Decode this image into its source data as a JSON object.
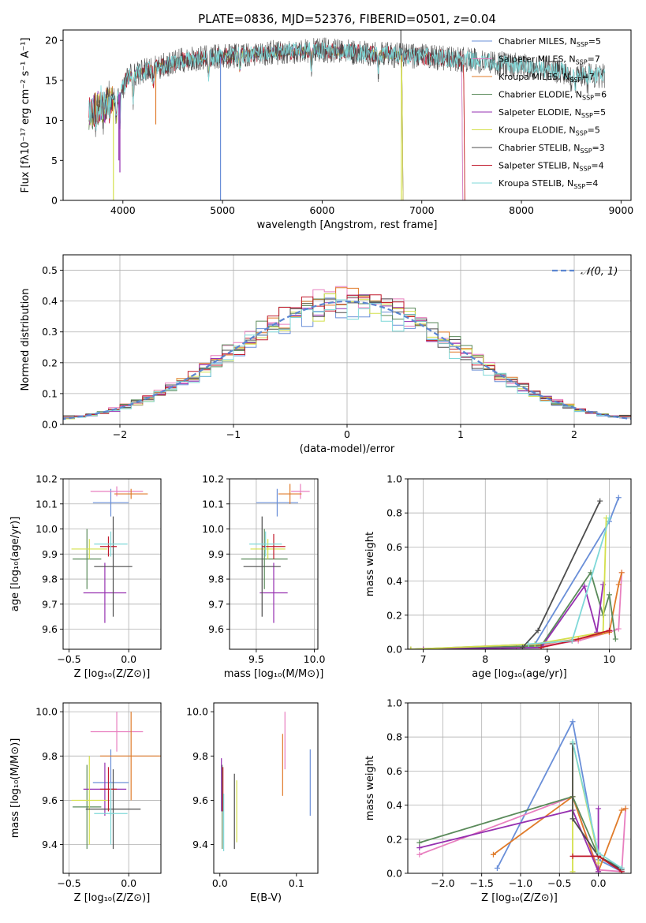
{
  "title": "PLATE=0836, MJD=52376, FIBERID=0501, z=0.04",
  "colors": {
    "Chabrier MILES": "#6a8fd8",
    "Salpeter MILES": "#e87fbf",
    "Kroupa MILES": "#e07b2a",
    "Chabrier ELODIE": "#5a8a5a",
    "Salpeter ELODIE": "#9630b0",
    "Kroupa ELODIE": "#d4e04c",
    "Chabrier STELIB": "#4d4d4d",
    "Salpeter STELIB": "#c0192b",
    "Kroupa STELIB": "#7fd8d8"
  },
  "legend_entries": [
    {
      "name": "Chabrier MILES",
      "n": "5"
    },
    {
      "name": "Salpeter MILES",
      "n": "7"
    },
    {
      "name": "Kroupa MILES",
      "n": "7"
    },
    {
      "name": "Chabrier ELODIE",
      "n": "6"
    },
    {
      "name": "Salpeter ELODIE",
      "n": "5"
    },
    {
      "name": "Kroupa ELODIE",
      "n": "5"
    },
    {
      "name": "Chabrier STELIB",
      "n": "3"
    },
    {
      "name": "Salpeter STELIB",
      "n": "4"
    },
    {
      "name": "Kroupa STELIB",
      "n": "4"
    }
  ],
  "legend_n_prefix": "N",
  "legend_n_sub": "SSP",
  "legend_n_eq": "=",
  "chart_data": [
    {
      "id": "spectrum",
      "type": "line",
      "xlabel": "wavelength [Angstrom, rest frame]",
      "ylabel": "Flux [fλ10⁻¹⁷ erg cm⁻² s⁻¹ A⁻¹]",
      "xlim": [
        3400,
        9100
      ],
      "ylim": [
        0,
        21.3
      ],
      "xticks": [
        4000,
        5000,
        6000,
        7000,
        8000,
        9000
      ],
      "yticks": [
        0,
        5,
        10,
        15,
        20
      ],
      "data_x_range": [
        3660,
        8840
      ],
      "continuum_knots": [
        [
          3660,
          11
        ],
        [
          3800,
          11.5
        ],
        [
          3950,
          13
        ],
        [
          4050,
          15.5
        ],
        [
          4300,
          16.5
        ],
        [
          4600,
          17.5
        ],
        [
          5000,
          18
        ],
        [
          5500,
          18.5
        ],
        [
          6000,
          18.8
        ],
        [
          6500,
          18.3
        ],
        [
          7000,
          18
        ],
        [
          7500,
          17.5
        ],
        [
          8000,
          16.8
        ],
        [
          8500,
          16
        ],
        [
          8840,
          15.5
        ]
      ],
      "absorption_features": [
        [
          3934,
          3
        ],
        [
          3969,
          4
        ],
        [
          4102,
          3
        ],
        [
          4305,
          2
        ],
        [
          4861,
          2
        ],
        [
          5175,
          2
        ],
        [
          5890,
          2
        ],
        [
          6563,
          2
        ],
        [
          8500,
          1.5
        ],
        [
          8542,
          1.5
        ],
        [
          8662,
          1.5
        ]
      ],
      "spikes": [
        {
          "series": "Kroupa ELODIE",
          "x": 3905,
          "y": 0
        },
        {
          "series": "Chabrier MILES",
          "x": 4980,
          "y": 0
        },
        {
          "series": "Kroupa ELODIE",
          "x": 6795,
          "y": 0
        },
        {
          "series": "Chabrier STELIB",
          "x": 6790,
          "y": 21.3
        },
        {
          "series": "Kroupa MILES",
          "x": 4330,
          "y": 9.5
        },
        {
          "series": "Salpeter ELODIE",
          "x": 3960,
          "y": 5
        },
        {
          "series": "Salpeter ELODIE",
          "x": 3970,
          "y": 3.5
        }
      ],
      "series_end_x": {
        "Chabrier MILES": 7400,
        "Salpeter MILES": 7400,
        "Kroupa MILES": 7420,
        "Chabrier ELODIE": 6800,
        "Salpeter ELODIE": 6800,
        "Kroupa ELODIE": 6800,
        "Chabrier STELIB": 8840,
        "Salpeter STELIB": 7420,
        "Kroupa STELIB": 8840
      },
      "legend": "top-right"
    },
    {
      "id": "residuals",
      "type": "histogram",
      "xlabel": "(data-model)/error",
      "ylabel": "Normed distribution",
      "xlim": [
        -2.5,
        2.5
      ],
      "ylim": [
        0,
        0.55
      ],
      "xticks": [
        -2,
        -1,
        0,
        1,
        2
      ],
      "yticks": [
        0.0,
        0.1,
        0.2,
        0.3,
        0.4,
        0.5
      ],
      "grid": true,
      "bin_edges_start": -2.5,
      "bin_width": 0.1,
      "reference_curve": {
        "label": "𝒩(0, 1)",
        "mu": 0,
        "sigma": 1,
        "color": "#5b86d1",
        "dashed": true
      },
      "legend": "top-right"
    },
    {
      "id": "age_vs_Z",
      "type": "errorbar",
      "xlabel": "Z [log₁₀(Z/Z⊙)]",
      "ylabel": "age  [log₁₀(age/yr)]",
      "xlim": [
        -0.55,
        0.27
      ],
      "ylim": [
        9.52,
        10.2
      ],
      "xticks": [
        -0.5,
        0.0
      ],
      "yticks": [
        9.6,
        9.7,
        9.8,
        9.9,
        10.0,
        10.1,
        10.2
      ],
      "grid": true,
      "points": [
        {
          "series": "Chabrier MILES",
          "x": -0.15,
          "xerr": 0.15,
          "y": 10.105,
          "yerr": 0.055
        },
        {
          "series": "Salpeter MILES",
          "x": -0.1,
          "xerr": 0.22,
          "y": 10.15,
          "yerr": 0.02
        },
        {
          "series": "Kroupa MILES",
          "x": 0.02,
          "xerr": 0.14,
          "y": 10.14,
          "yerr": 0.02
        },
        {
          "series": "Chabrier ELODIE",
          "x": -0.35,
          "xerr": 0.12,
          "y": 9.88,
          "yerr": 0.12
        },
        {
          "series": "Salpeter ELODIE",
          "x": -0.2,
          "xerr": 0.18,
          "y": 9.745,
          "yerr": 0.12
        },
        {
          "series": "Kroupa ELODIE",
          "x": -0.33,
          "xerr": 0.15,
          "y": 9.92,
          "yerr": 0.04
        },
        {
          "series": "Chabrier STELIB",
          "x": -0.13,
          "xerr": 0.16,
          "y": 9.85,
          "yerr": 0.2
        },
        {
          "series": "Salpeter STELIB",
          "x": -0.17,
          "xerr": 0.07,
          "y": 9.93,
          "yerr": 0.04
        },
        {
          "series": "Kroupa STELIB",
          "x": -0.15,
          "xerr": 0.14,
          "y": 9.94,
          "yerr": 0.05
        }
      ]
    },
    {
      "id": "age_vs_mass",
      "type": "errorbar",
      "xlabel": "mass [log₁₀(M/M⊙)]",
      "ylabel": "",
      "xlim": [
        9.27,
        10.03
      ],
      "ylim": [
        9.52,
        10.2
      ],
      "xticks": [
        9.5,
        10.0
      ],
      "yticks": [
        9.6,
        9.7,
        9.8,
        9.9,
        10.0,
        10.1,
        10.2
      ],
      "grid": true,
      "points": [
        {
          "series": "Chabrier MILES",
          "x": 9.68,
          "xerr": 0.18,
          "y": 10.105,
          "yerr": 0.055
        },
        {
          "series": "Salpeter MILES",
          "x": 9.88,
          "xerr": 0.08,
          "y": 10.15,
          "yerr": 0.03
        },
        {
          "series": "Kroupa MILES",
          "x": 9.79,
          "xerr": 0.1,
          "y": 10.14,
          "yerr": 0.04
        },
        {
          "series": "Chabrier ELODIE",
          "x": 9.57,
          "xerr": 0.2,
          "y": 9.88,
          "yerr": 0.12
        },
        {
          "series": "Salpeter ELODIE",
          "x": 9.65,
          "xerr": 0.12,
          "y": 9.745,
          "yerr": 0.12
        },
        {
          "series": "Kroupa ELODIE",
          "x": 9.6,
          "xerr": 0.15,
          "y": 9.92,
          "yerr": 0.04
        },
        {
          "series": "Chabrier STELIB",
          "x": 9.55,
          "xerr": 0.16,
          "y": 9.85,
          "yerr": 0.2
        },
        {
          "series": "Salpeter STELIB",
          "x": 9.65,
          "xerr": 0.1,
          "y": 9.93,
          "yerr": 0.05
        },
        {
          "series": "Kroupa STELIB",
          "x": 9.58,
          "xerr": 0.14,
          "y": 9.94,
          "yerr": 0.05
        }
      ]
    },
    {
      "id": "weight_vs_age",
      "type": "line",
      "xlabel": "age  [log₁₀(age/yr)]",
      "ylabel": "mass weight",
      "xlim": [
        6.75,
        10.35
      ],
      "ylim": [
        0,
        1.0
      ],
      "xticks": [
        7,
        8,
        9,
        10
      ],
      "yticks": [
        0.0,
        0.2,
        0.4,
        0.6,
        0.8,
        1.0
      ],
      "grid": true,
      "series": [
        {
          "name": "Chabrier MILES",
          "x": [
            6.8,
            8.8,
            10.0,
            10.15
          ],
          "y": [
            0.0,
            0.03,
            0.75,
            0.89
          ]
        },
        {
          "name": "Salpeter MILES",
          "x": [
            7.0,
            8.0,
            8.9,
            9.5,
            10.0,
            10.15,
            10.2
          ],
          "y": [
            0.0,
            0.01,
            0.02,
            0.05,
            0.1,
            0.12,
            0.45
          ]
        },
        {
          "name": "Kroupa MILES",
          "x": [
            6.8,
            8.5,
            9.5,
            10.0,
            10.15,
            10.2
          ],
          "y": [
            0.0,
            0.01,
            0.06,
            0.1,
            0.38,
            0.45
          ]
        },
        {
          "name": "Chabrier ELODIE",
          "x": [
            6.8,
            8.9,
            9.7,
            9.9,
            10.0,
            10.1
          ],
          "y": [
            0.0,
            0.02,
            0.45,
            0.2,
            0.32,
            0.06
          ]
        },
        {
          "name": "Salpeter ELODIE",
          "x": [
            7.0,
            8.9,
            9.6,
            9.8,
            9.9
          ],
          "y": [
            0.0,
            0.01,
            0.37,
            0.1,
            0.38
          ]
        },
        {
          "name": "Kroupa ELODIE",
          "x": [
            6.8,
            8.8,
            9.9,
            9.95
          ],
          "y": [
            0.0,
            0.03,
            0.1,
            0.77
          ]
        },
        {
          "name": "Chabrier STELIB",
          "x": [
            8.6,
            8.85,
            9.85
          ],
          "y": [
            0.01,
            0.11,
            0.87
          ]
        },
        {
          "name": "Salpeter STELIB",
          "x": [
            8.9,
            9.4,
            10.0
          ],
          "y": [
            0.01,
            0.05,
            0.11
          ]
        },
        {
          "name": "Kroupa STELIB",
          "x": [
            8.7,
            9.4,
            10.0
          ],
          "y": [
            0.03,
            0.05,
            0.77
          ]
        }
      ]
    },
    {
      "id": "mass_vs_Z",
      "type": "errorbar",
      "xlabel": "Z [log₁₀(Z/Z⊙)]",
      "ylabel": "mass [log₁₀(M/M⊙)]",
      "xlim": [
        -0.55,
        0.27
      ],
      "ylim": [
        9.27,
        10.04
      ],
      "xticks": [
        -0.5,
        0.0
      ],
      "yticks": [
        9.4,
        9.6,
        9.8,
        10.0
      ],
      "grid": true,
      "points": [
        {
          "series": "Chabrier MILES",
          "x": -0.15,
          "xerr": 0.15,
          "y": 9.68,
          "yerr": 0.15
        },
        {
          "series": "Salpeter MILES",
          "x": -0.1,
          "xerr": 0.22,
          "y": 9.91,
          "yerr": 0.09
        },
        {
          "series": "Kroupa MILES",
          "x": 0.02,
          "xerr": 0.26,
          "y": 9.8,
          "yerr": 0.2
        },
        {
          "series": "Chabrier ELODIE",
          "x": -0.35,
          "xerr": 0.12,
          "y": 9.57,
          "yerr": 0.19
        },
        {
          "series": "Salpeter ELODIE",
          "x": -0.2,
          "xerr": 0.18,
          "y": 9.65,
          "yerr": 0.12
        },
        {
          "series": "Kroupa ELODIE",
          "x": -0.33,
          "xerr": 0.15,
          "y": 9.6,
          "yerr": 0.2
        },
        {
          "series": "Chabrier STELIB",
          "x": -0.13,
          "xerr": 0.23,
          "y": 9.56,
          "yerr": 0.18
        },
        {
          "series": "Salpeter STELIB",
          "x": -0.17,
          "xerr": 0.07,
          "y": 9.65,
          "yerr": 0.1
        },
        {
          "series": "Kroupa STELIB",
          "x": -0.15,
          "xerr": 0.14,
          "y": 9.54,
          "yerr": 0.14
        }
      ]
    },
    {
      "id": "mass_vs_ebv",
      "type": "errorbar",
      "xlabel": "E(B-V)",
      "ylabel": "",
      "xlim": [
        -0.008,
        0.128
      ],
      "ylim": [
        9.27,
        10.04
      ],
      "xticks": [
        0.0,
        0.1
      ],
      "yticks": [
        9.4,
        9.6,
        9.8,
        10.0
      ],
      "grid": false,
      "points": [
        {
          "series": "Chabrier MILES",
          "x": 0.118,
          "xerr": 0,
          "y": 9.68,
          "yerr": 0.15
        },
        {
          "series": "Salpeter MILES",
          "x": 0.085,
          "xerr": 0,
          "y": 9.87,
          "yerr": 0.13
        },
        {
          "series": "Kroupa MILES",
          "x": 0.082,
          "xerr": 0,
          "y": 9.76,
          "yerr": 0.14
        },
        {
          "series": "Chabrier ELODIE",
          "x": 0.003,
          "xerr": 0,
          "y": 9.57,
          "yerr": 0.19
        },
        {
          "series": "Salpeter ELODIE",
          "x": 0.002,
          "xerr": 0,
          "y": 9.67,
          "yerr": 0.12
        },
        {
          "series": "Kroupa ELODIE",
          "x": 0.022,
          "xerr": 0,
          "y": 9.55,
          "yerr": 0.14
        },
        {
          "series": "Chabrier STELIB",
          "x": 0.019,
          "xerr": 0,
          "y": 9.55,
          "yerr": 0.17
        },
        {
          "series": "Salpeter STELIB",
          "x": 0.004,
          "xerr": 0,
          "y": 9.65,
          "yerr": 0.1
        },
        {
          "series": "Kroupa STELIB",
          "x": 0.005,
          "xerr": 0,
          "y": 9.5,
          "yerr": 0.13
        }
      ]
    },
    {
      "id": "weight_vs_Z",
      "type": "line",
      "xlabel": "Z [log₁₀(Z/Z⊙)]",
      "ylabel": "mass weight",
      "xlim": [
        -2.45,
        0.42
      ],
      "ylim": [
        0,
        1.0
      ],
      "xticks": [
        -2.0,
        -1.5,
        -1.0,
        -0.5,
        0.0
      ],
      "yticks": [
        0.0,
        0.2,
        0.4,
        0.6,
        0.8,
        1.0
      ],
      "grid": true,
      "series": [
        {
          "name": "Chabrier MILES",
          "x": [
            -1.3,
            -0.33,
            0.0,
            0.3
          ],
          "y": [
            0.03,
            0.89,
            0.08,
            0.01
          ]
        },
        {
          "name": "Salpeter MILES",
          "x": [
            -2.3,
            -0.33,
            0.0,
            0.3,
            0.35
          ],
          "y": [
            0.11,
            0.45,
            0.02,
            0.01,
            0.38
          ]
        },
        {
          "name": "Kroupa MILES",
          "x": [
            -1.35,
            -0.33,
            0.0,
            0.3,
            0.35
          ],
          "y": [
            0.11,
            0.45,
            0.01,
            0.37,
            0.38
          ]
        },
        {
          "name": "Chabrier ELODIE",
          "x": [
            -2.3,
            -0.33,
            0.0,
            0.3
          ],
          "y": [
            0.18,
            0.45,
            0.1,
            0.03
          ]
        },
        {
          "name": "Salpeter ELODIE",
          "x": [
            -2.3,
            -0.33,
            0.0,
            0.0
          ],
          "y": [
            0.15,
            0.37,
            0.01,
            0.38
          ]
        },
        {
          "name": "Kroupa ELODIE",
          "x": [
            -0.33,
            -0.33,
            0.0,
            0.0
          ],
          "y": [
            0.01,
            0.77,
            0.1,
            0.06
          ]
        },
        {
          "name": "Chabrier STELIB",
          "x": [
            -0.33,
            -0.33,
            0.0,
            0.3
          ],
          "y": [
            0.76,
            0.32,
            0.1,
            0.02
          ]
        },
        {
          "name": "Salpeter STELIB",
          "x": [
            -0.33,
            0.0,
            0.3
          ],
          "y": [
            0.1,
            0.1,
            0.01
          ]
        },
        {
          "name": "Kroupa STELIB",
          "x": [
            -0.33,
            0.0,
            0.3
          ],
          "y": [
            0.77,
            0.12,
            0.03
          ]
        }
      ]
    }
  ]
}
